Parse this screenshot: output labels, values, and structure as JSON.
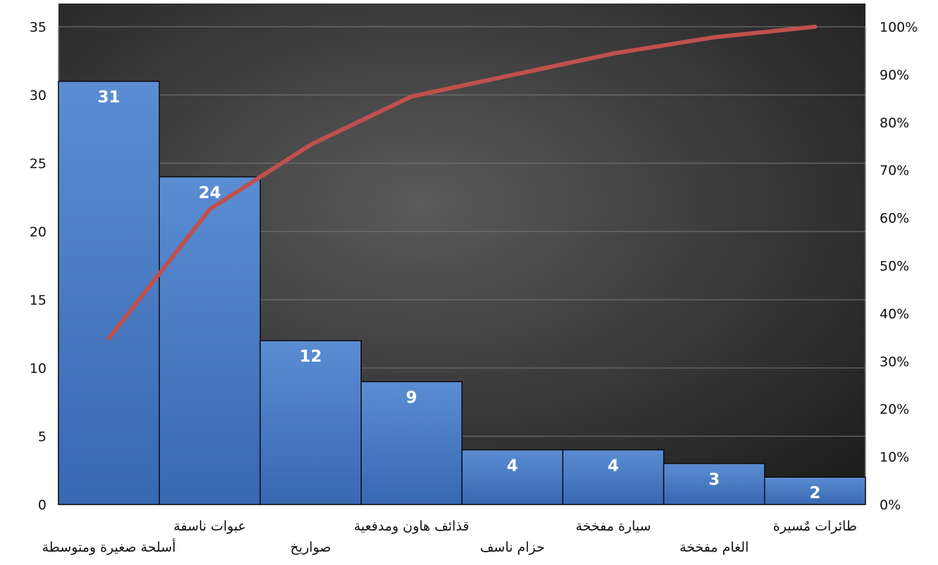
{
  "chart_data": {
    "type": "bar",
    "categories": [
      "أسلحة صغيرة ومتوسطة",
      "عبوات ناسفة",
      "صواريخ",
      "قذائف هاون ومدفعية",
      "حزام ناسف",
      "سيارة مفخخة",
      "الغام مفخخة",
      "طائرات مٌسيرة"
    ],
    "values": [
      31,
      24,
      12,
      9,
      4,
      4,
      3,
      2
    ],
    "data_labels": [
      "31",
      "24",
      "12",
      "9",
      "4",
      "4",
      "3",
      "2"
    ],
    "cumulative_percent": [
      34.8,
      61.8,
      75.3,
      85.4,
      89.9,
      94.4,
      97.8,
      100
    ],
    "ylim": [
      0,
      35
    ],
    "y_ticks": [
      "0",
      "5",
      "10",
      "15",
      "20",
      "25",
      "30",
      "35"
    ],
    "y2lim": [
      0,
      100
    ],
    "y2_ticks": [
      "0%",
      "10%",
      "20%",
      "30%",
      "40%",
      "50%",
      "60%",
      "70%",
      "80%",
      "90%",
      "100%"
    ],
    "grid": true,
    "colors": {
      "bar": "#3f74c0",
      "bar_light": "#5d8fd4",
      "line": "#c0504d",
      "plot_bg": "#4a4a4a",
      "plot_bg_dark": "#222222",
      "gridline": "#7a7a7a"
    }
  }
}
